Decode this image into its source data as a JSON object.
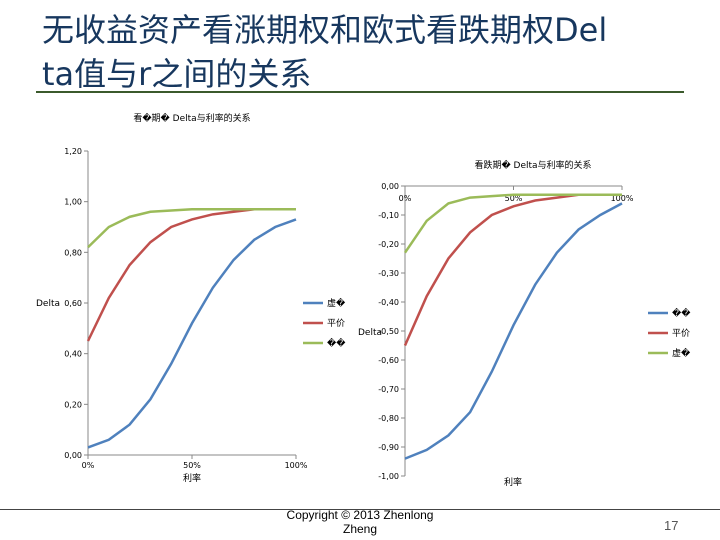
{
  "slide": {
    "title_line1": "无收益资产看涨期权和欧式看跌期权Del",
    "title_line2": "ta值与r之间的关系",
    "footer": "Copyright © 2013 Zhenlong Zheng",
    "page_number": "17"
  },
  "chart_data": [
    {
      "type": "line",
      "title": "看�期� Delta与利率的关系",
      "xlabel": "利率",
      "ylabel": "Delta",
      "x_ticks": [
        "0%",
        "50%",
        "100%"
      ],
      "y_ticks": [
        "0,00",
        "0,20",
        "0,40",
        "0,60",
        "0,80",
        "1,00",
        "1,20"
      ],
      "ylim": [
        0,
        1.2
      ],
      "xlim": [
        0,
        1
      ],
      "grid": false,
      "legend_position": "right",
      "x": [
        0,
        0.1,
        0.2,
        0.3,
        0.4,
        0.5,
        0.6,
        0.7,
        0.8,
        0.9,
        1.0
      ],
      "series": [
        {
          "name": "虚�",
          "color": "#4f81bd",
          "values": [
            0.03,
            0.06,
            0.12,
            0.22,
            0.36,
            0.52,
            0.66,
            0.77,
            0.85,
            0.9,
            0.93
          ]
        },
        {
          "name": "平价",
          "color": "#c0504d",
          "values": [
            0.45,
            0.62,
            0.75,
            0.84,
            0.9,
            0.93,
            0.95,
            0.96,
            0.97,
            0.97,
            0.97
          ]
        },
        {
          "name": "��",
          "color": "#9bbb59",
          "values": [
            0.82,
            0.9,
            0.94,
            0.96,
            0.965,
            0.97,
            0.97,
            0.97,
            0.97,
            0.97,
            0.97
          ]
        }
      ]
    },
    {
      "type": "line",
      "title": "看跌期� Delta与利率的关系",
      "xlabel": "利率",
      "ylabel": "Delta",
      "x_ticks": [
        "0%",
        "50%",
        "100%"
      ],
      "y_ticks": [
        "0,00",
        "-0,10",
        "-0,20",
        "-0,30",
        "-0,40",
        "-0,50",
        "-0,60",
        "-0,70",
        "-0,80",
        "-0,90",
        "-1,00"
      ],
      "ylim": [
        -1.0,
        0
      ],
      "xlim": [
        0,
        1
      ],
      "grid": false,
      "legend_position": "right",
      "x": [
        0,
        0.1,
        0.2,
        0.3,
        0.4,
        0.5,
        0.6,
        0.7,
        0.8,
        0.9,
        1.0
      ],
      "series": [
        {
          "name": "��",
          "color": "#4f81bd",
          "values": [
            -0.94,
            -0.91,
            -0.86,
            -0.78,
            -0.64,
            -0.48,
            -0.34,
            -0.23,
            -0.15,
            -0.1,
            -0.06
          ]
        },
        {
          "name": "平价",
          "color": "#c0504d",
          "values": [
            -0.55,
            -0.38,
            -0.25,
            -0.16,
            -0.1,
            -0.07,
            -0.05,
            -0.04,
            -0.03,
            -0.03,
            -0.03
          ]
        },
        {
          "name": "虚�",
          "color": "#9bbb59",
          "values": [
            -0.23,
            -0.12,
            -0.06,
            -0.04,
            -0.035,
            -0.03,
            -0.03,
            -0.03,
            -0.03,
            -0.03,
            -0.03
          ]
        }
      ]
    }
  ]
}
